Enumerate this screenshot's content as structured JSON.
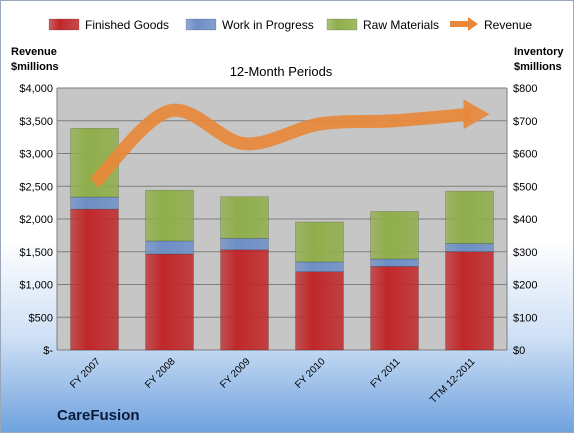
{
  "company": "CareFusion",
  "chart_data": {
    "type": "bar",
    "stacked": true,
    "title": "12-Month Periods",
    "ylabel_left": "Revenue $millions",
    "ylabel_right": "Inventory $millions",
    "categories": [
      "FY 2007",
      "FY 2008",
      "FY 2009",
      "FY 2010",
      "FY 2011",
      "TTM 12-2011"
    ],
    "series": [
      {
        "name": "Finished Goods",
        "axis": "right",
        "color": "#c0282a",
        "values": [
          430,
          293,
          306,
          239,
          255,
          300
        ]
      },
      {
        "name": "Work in Progress",
        "axis": "right",
        "color": "#6d8fc6",
        "values": [
          37,
          40,
          35,
          30,
          23,
          25
        ]
      },
      {
        "name": "Raw Materials",
        "axis": "right",
        "color": "#8fae4a",
        "values": [
          210,
          155,
          127,
          122,
          145,
          160
        ]
      }
    ],
    "line": {
      "name": "Revenue",
      "axis": "left",
      "color": "#e8883a",
      "values": [
        2550,
        3650,
        3150,
        3450,
        3500,
        3600
      ]
    },
    "left_axis": {
      "min": 0,
      "max": 4000,
      "ticks": [
        "$-",
        "$500",
        "$1,000",
        "$1,500",
        "$2,000",
        "$2,500",
        "$3,000",
        "$3,500",
        "$4,000"
      ]
    },
    "right_axis": {
      "min": 0,
      "max": 800,
      "ticks": [
        "$0",
        "$100",
        "$200",
        "$300",
        "$400",
        "$500",
        "$600",
        "$700",
        "$800"
      ]
    },
    "legend_position": "top",
    "grid": true
  }
}
